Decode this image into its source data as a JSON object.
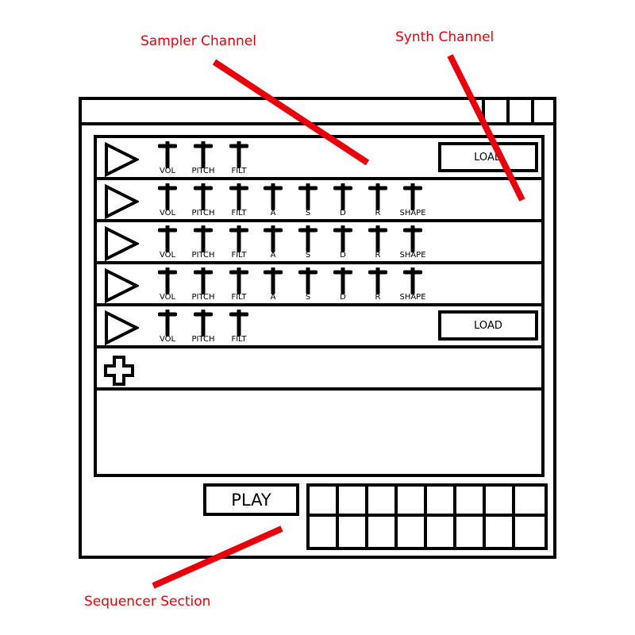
{
  "annotations": {
    "sampler": "Sampler Channel",
    "synth": "Synth Channel",
    "sequencer": "Sequencer Section"
  },
  "annotation_color": "#e8000b",
  "channels": [
    {
      "kind": "sampler",
      "knobs": [
        "VOL",
        "PITCH",
        "FILT"
      ],
      "load_label": "LOAD"
    },
    {
      "kind": "synth",
      "knobs": [
        "VOL",
        "PITCH",
        "FILT",
        "A",
        "S",
        "D",
        "R",
        "SHAPE"
      ]
    },
    {
      "kind": "synth",
      "knobs": [
        "VOL",
        "PITCH",
        "FILT",
        "A",
        "S",
        "D",
        "R",
        "SHAPE"
      ]
    },
    {
      "kind": "synth",
      "knobs": [
        "VOL",
        "PITCH",
        "FILT",
        "A",
        "S",
        "D",
        "R",
        "SHAPE"
      ]
    },
    {
      "kind": "sampler",
      "knobs": [
        "VOL",
        "PITCH",
        "FILT"
      ],
      "load_label": "LOAD"
    }
  ],
  "add_channel_icon": "plus-icon",
  "play_label": "PLAY",
  "sequencer": {
    "rows": 2,
    "cols": 8
  }
}
